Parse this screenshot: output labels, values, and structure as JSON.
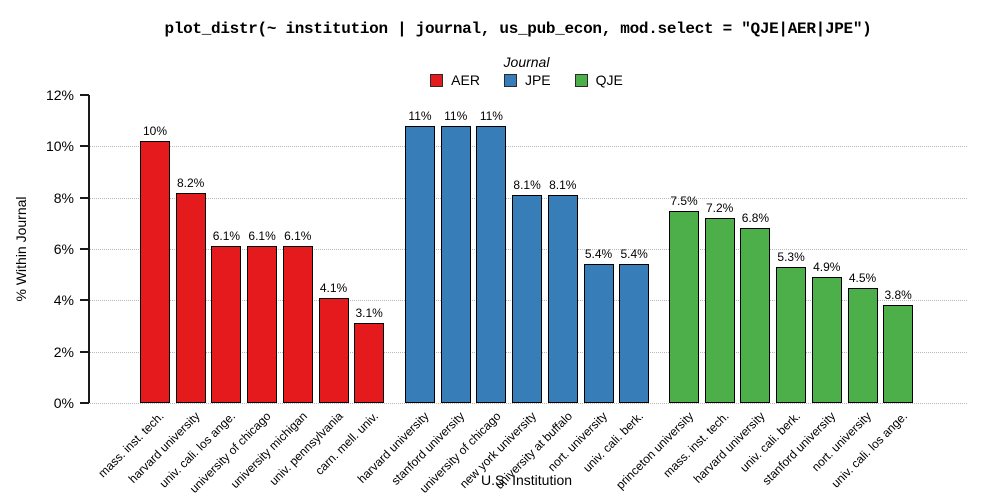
{
  "title": "plot_distr(~ institution | journal, us_pub_econ, mod.select = \"QJE|AER|JPE\")",
  "legend": {
    "title": "Journal",
    "items": [
      {
        "label": "AER",
        "color": "#e41a1c"
      },
      {
        "label": "JPE",
        "color": "#377eb8"
      },
      {
        "label": "QJE",
        "color": "#4daf4a"
      }
    ]
  },
  "axes": {
    "x_title": "U.S. Institution",
    "y_title": "% Within Journal"
  },
  "chart_data": {
    "type": "bar",
    "title": "plot_distr(~ institution | journal, us_pub_econ, mod.select = \"QJE|AER|JPE\")",
    "xlabel": "U.S. Institution",
    "ylabel": "% Within Journal",
    "ylim": [
      0,
      12
    ],
    "yticks": [
      0,
      2,
      4,
      6,
      8,
      10,
      12
    ],
    "ytick_labels": [
      "0%",
      "2%",
      "4%",
      "6%",
      "8%",
      "10%",
      "12%"
    ],
    "grid_values": [
      0,
      2,
      4,
      6,
      8,
      10
    ],
    "grid_style": "dotted-horizontal",
    "legend_position": "top-center",
    "legend_title": "Journal",
    "series_order": [
      "AER",
      "JPE",
      "QJE"
    ],
    "groups": [
      {
        "name": "AER",
        "color": "#e41a1c",
        "bars": [
          {
            "category": "mass. inst. tech.",
            "value": 10.2,
            "label": "10%"
          },
          {
            "category": "harvard university",
            "value": 8.2,
            "label": "8.2%"
          },
          {
            "category": "univ. cali. los ange.",
            "value": 6.1,
            "label": "6.1%"
          },
          {
            "category": "university of chicago",
            "value": 6.1,
            "label": "6.1%"
          },
          {
            "category": "university michigan",
            "value": 6.1,
            "label": "6.1%"
          },
          {
            "category": "univ. pennsylvania",
            "value": 4.1,
            "label": "4.1%"
          },
          {
            "category": "carn. mell. univ.",
            "value": 3.1,
            "label": "3.1%"
          }
        ]
      },
      {
        "name": "JPE",
        "color": "#377eb8",
        "bars": [
          {
            "category": "harvard university",
            "value": 10.8,
            "label": "11%"
          },
          {
            "category": "stanford university",
            "value": 10.8,
            "label": "11%"
          },
          {
            "category": "university of chicago",
            "value": 10.8,
            "label": "11%"
          },
          {
            "category": "new york university",
            "value": 8.1,
            "label": "8.1%"
          },
          {
            "category": "university at buffalo",
            "value": 8.1,
            "label": "8.1%"
          },
          {
            "category": "nort. university",
            "value": 5.4,
            "label": "5.4%"
          },
          {
            "category": "univ. cali. berk.",
            "value": 5.4,
            "label": "5.4%"
          }
        ]
      },
      {
        "name": "QJE",
        "color": "#4daf4a",
        "bars": [
          {
            "category": "princeton university",
            "value": 7.5,
            "label": "7.5%"
          },
          {
            "category": "mass. inst. tech.",
            "value": 7.2,
            "label": "7.2%"
          },
          {
            "category": "harvard university",
            "value": 6.8,
            "label": "6.8%"
          },
          {
            "category": "univ. cali. berk.",
            "value": 5.3,
            "label": "5.3%"
          },
          {
            "category": "stanford university",
            "value": 4.9,
            "label": "4.9%"
          },
          {
            "category": "nort. university",
            "value": 4.5,
            "label": "4.5%"
          },
          {
            "category": "univ. cali. los ange.",
            "value": 3.8,
            "label": "3.8%"
          }
        ]
      }
    ]
  }
}
